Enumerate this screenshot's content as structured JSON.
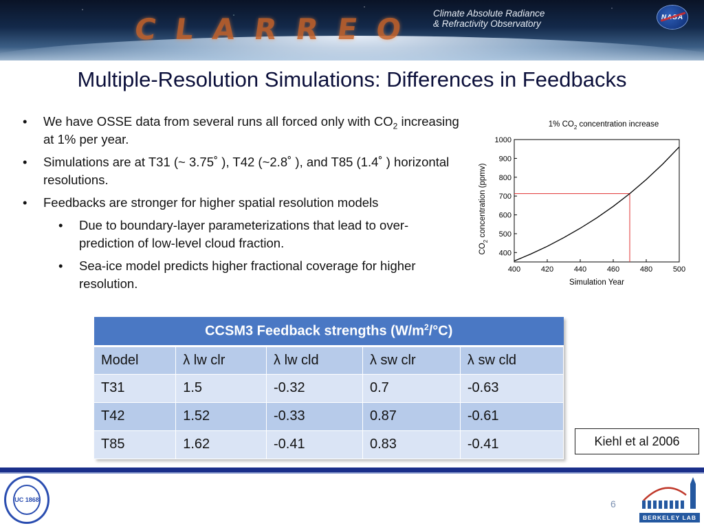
{
  "banner": {
    "logo_text": "CLARREO",
    "subtitle_line1": "Climate Absolute Radiance",
    "subtitle_line2": "& Refractivity Observatory",
    "nasa_text": "NASA"
  },
  "slide_title": "Multiple-Resolution Simulations: Differences in Feedbacks",
  "bullets": [
    {
      "pre": "We have OSSE data from several runs all forced only with CO",
      "sub": "2",
      "post": " increasing at 1% per year."
    },
    {
      "text": "Simulations are at T31 (~ 3.75˚ ), T42 (~2.8˚ ), and T85 (1.4˚ ) horizontal resolutions."
    },
    {
      "text": "Feedbacks are stronger for higher spatial resolution models"
    },
    {
      "text": "Due to boundary-layer parameterizations that lead to over-prediction of low-level cloud fraction."
    },
    {
      "text": "Sea-ice model predicts higher fractional coverage for higher resolution."
    }
  ],
  "chart_data": {
    "type": "line",
    "title_pre": "1% CO",
    "title_sub": "2",
    "title_post": " concentration increase",
    "xlabel": "Simulation Year",
    "ylabel_pre": "CO",
    "ylabel_sub": "2",
    "ylabel_post": " concentration (ppmv)",
    "xlim": [
      400,
      500
    ],
    "ylim": [
      350,
      1000
    ],
    "xticks": [
      400,
      420,
      440,
      460,
      480,
      500
    ],
    "yticks": [
      400,
      500,
      600,
      700,
      800,
      900,
      1000
    ],
    "series": [
      {
        "x": [
          400,
          410,
          420,
          430,
          440,
          450,
          460,
          470,
          480,
          490,
          500
        ],
        "y": [
          355,
          392,
          433,
          479,
          529,
          584,
          645,
          713,
          788,
          870,
          961
        ],
        "color": "#000000"
      }
    ],
    "reference": {
      "x": 470,
      "y": 713,
      "color": "#e03030"
    }
  },
  "table": {
    "caption_pre": "CCSM3 Feedback strengths (W/m",
    "caption_sup": "2",
    "caption_post": "/°C)",
    "headers": [
      "Model",
      "λ lw clr",
      "λ lw cld",
      "λ sw clr",
      "λ sw cld"
    ],
    "rows": [
      [
        "T31",
        "1.5",
        "-0.32",
        "0.7",
        "-0.63"
      ],
      [
        "T42",
        "1.52",
        "-0.33",
        "0.87",
        "-0.61"
      ],
      [
        "T85",
        "1.62",
        "-0.41",
        "0.83",
        "-0.41"
      ]
    ]
  },
  "citation": "Kiehl et al 2006",
  "footer": {
    "page_number": "6",
    "lab_name": "BERKELEY LAB",
    "seal_text": "UC 1868"
  }
}
